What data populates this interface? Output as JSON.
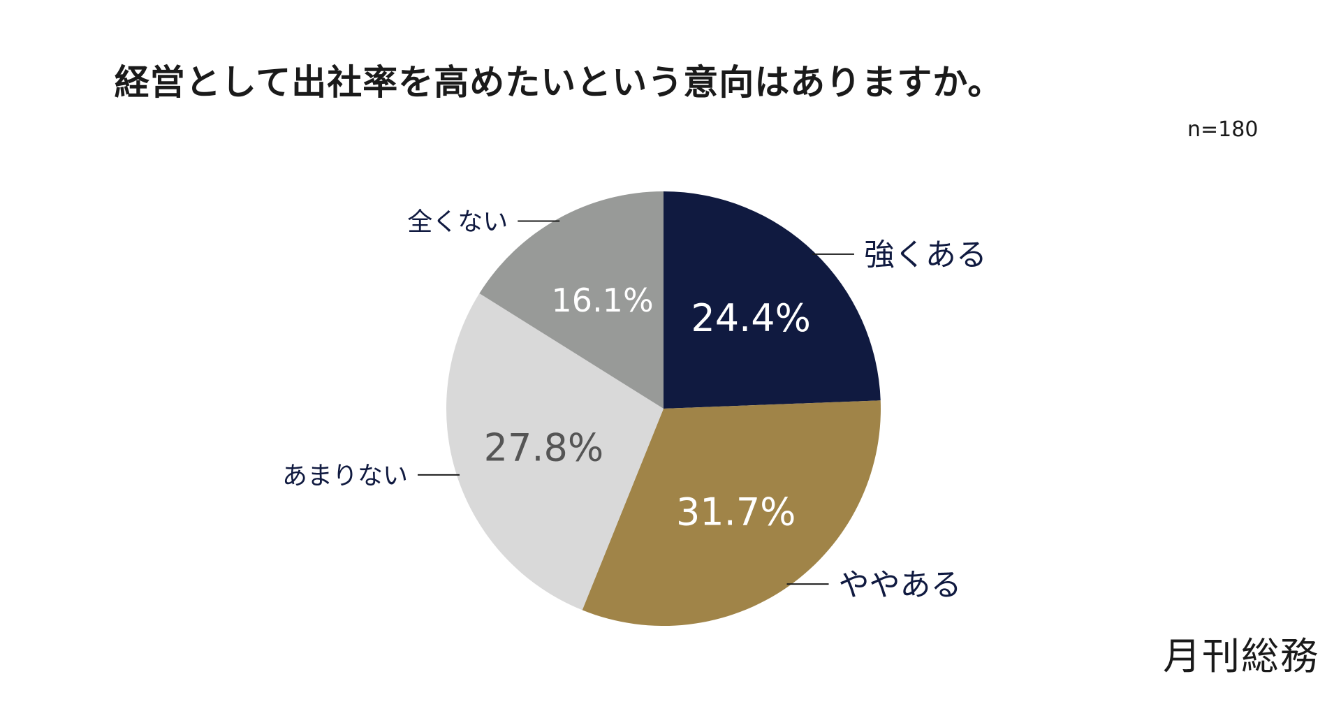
{
  "chart_data": {
    "type": "pie",
    "title": "経営として出社率を高めたいという意向はありますか。",
    "note": "n=180",
    "slices": [
      {
        "label": "強くある",
        "value": 24.4,
        "value_label": "24.4%",
        "color": "#101a40",
        "text_color": "#ffffff"
      },
      {
        "label": "ややある",
        "value": 31.7,
        "value_label": "31.7%",
        "color": "#a08448",
        "text_color": "#ffffff"
      },
      {
        "label": "あまりない",
        "value": 27.8,
        "value_label": "27.8%",
        "color": "#d9d9d9",
        "text_color": "#555555"
      },
      {
        "label": "全くない",
        "value": 16.1,
        "value_label": "16.1%",
        "color": "#989a98",
        "text_color": "#ffffff"
      }
    ],
    "label_color": "#101a40"
  },
  "brand": "月刊総務"
}
